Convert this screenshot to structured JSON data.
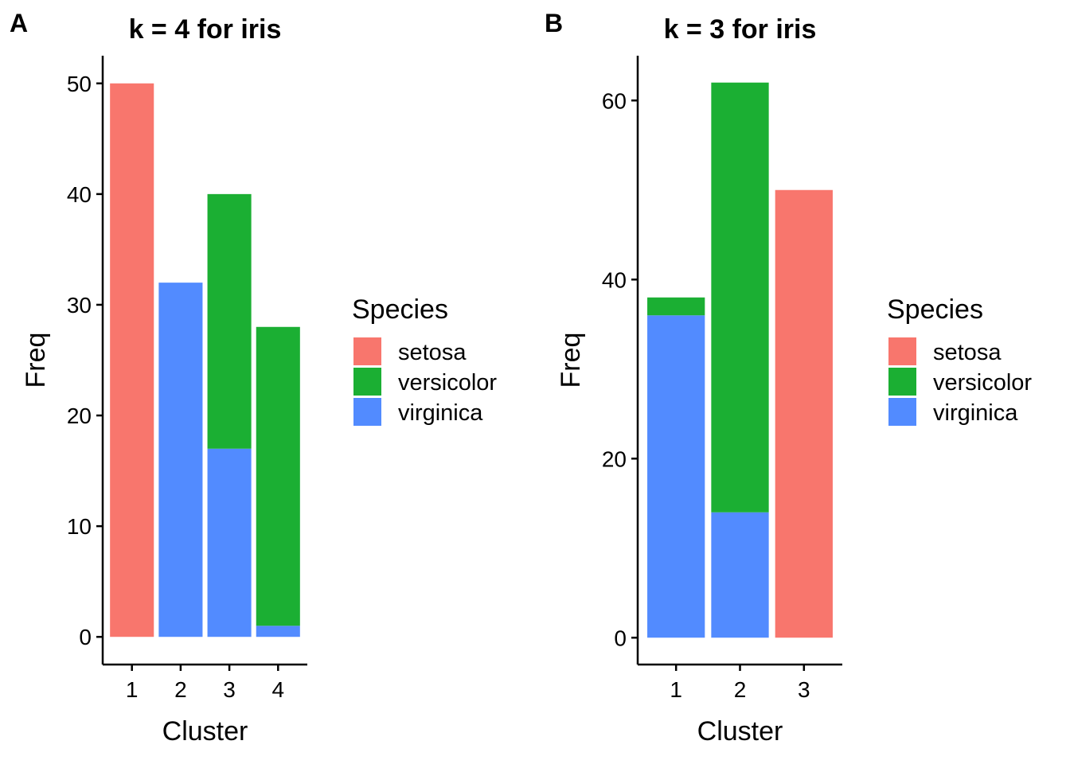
{
  "chart_data": [
    {
      "panel_label": "A",
      "type": "bar",
      "stacked": true,
      "title": "k = 4 for iris",
      "xlabel": "Cluster",
      "ylabel": "Freq",
      "categories": [
        "1",
        "2",
        "3",
        "4"
      ],
      "series": [
        {
          "name": "setosa",
          "color": "#F8766D",
          "values": [
            50,
            0,
            0,
            0
          ]
        },
        {
          "name": "versicolor",
          "color": "#1BAF33",
          "values": [
            0,
            0,
            23,
            27
          ]
        },
        {
          "name": "virginica",
          "color": "#528BFF",
          "values": [
            0,
            32,
            17,
            1
          ]
        }
      ],
      "ylim": [
        -2.5,
        52.5
      ],
      "yticks": [
        0,
        10,
        20,
        30,
        40,
        50
      ],
      "grid": false,
      "legend": {
        "title": "Species",
        "placement": "right"
      }
    },
    {
      "panel_label": "B",
      "type": "bar",
      "stacked": true,
      "title": "k = 3 for iris",
      "xlabel": "Cluster",
      "ylabel": "Freq",
      "categories": [
        "1",
        "2",
        "3"
      ],
      "series": [
        {
          "name": "setosa",
          "color": "#F8766D",
          "values": [
            0,
            0,
            50
          ]
        },
        {
          "name": "versicolor",
          "color": "#1BAF33",
          "values": [
            2,
            48,
            0
          ]
        },
        {
          "name": "virginica",
          "color": "#528BFF",
          "values": [
            36,
            14,
            0
          ]
        }
      ],
      "ylim": [
        -3,
        65
      ],
      "yticks": [
        0,
        20,
        40,
        60
      ],
      "grid": false,
      "legend": {
        "title": "Species",
        "placement": "right"
      }
    }
  ]
}
